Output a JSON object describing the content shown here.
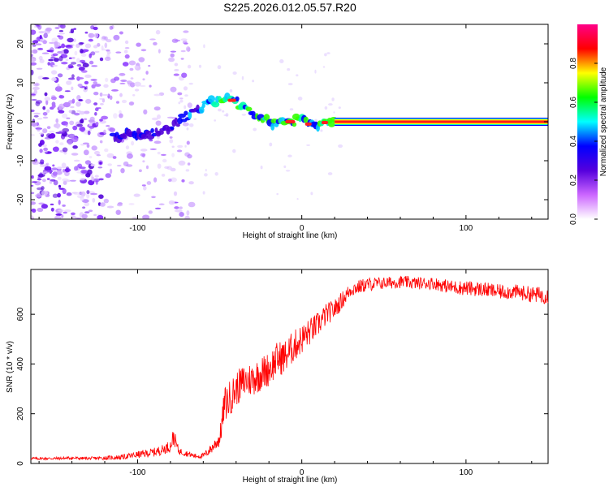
{
  "title": "S225.2026.012.05.57.R20",
  "chart_data": [
    {
      "type": "heatmap",
      "xlabel": "Height of straight line (km)",
      "ylabel": "Frequency (Hz)",
      "xlim": [
        -165,
        150
      ],
      "ylim": [
        -25,
        25
      ],
      "xticks": [
        -100,
        0,
        100
      ],
      "yticks": [
        -20,
        -10,
        0,
        10,
        20
      ],
      "grid": false,
      "colorbar": {
        "label": "Normalized spectral amplitude",
        "range": [
          0,
          1
        ],
        "ticks": [
          "0.0",
          "0.2",
          "0.4",
          "0.6",
          "0.8"
        ],
        "colormap": [
          "#ffffff",
          "#cc66ff",
          "#5500dd",
          "#0000ff",
          "#00ffff",
          "#00ff00",
          "#ffff00",
          "#ff0000",
          "#ff0088"
        ]
      },
      "ridge": {
        "x": [
          -115,
          -105,
          -95,
          -85,
          -75,
          -65,
          -55,
          -45,
          -40,
          -35,
          -25,
          -15,
          -10,
          -5,
          0,
          5,
          10,
          15,
          20,
          150
        ],
        "y": [
          -4,
          -3,
          -3,
          -3,
          0,
          3,
          5,
          6,
          5,
          4,
          1,
          -1,
          0,
          0,
          1,
          -1,
          -1,
          0,
          0,
          0
        ]
      },
      "noise_region_x": [
        -165,
        -75
      ]
    },
    {
      "type": "line",
      "xlabel": "Height of straight line (km)",
      "ylabel": "SNR (10 * v/v)",
      "xlim": [
        -165,
        150
      ],
      "ylim": [
        0,
        780
      ],
      "xticks": [
        -100,
        0,
        100
      ],
      "yticks": [
        0,
        200,
        400,
        600
      ],
      "grid": false,
      "series": [
        {
          "color": "#ff0000",
          "x": [
            -165,
            -150,
            -140,
            -130,
            -120,
            -110,
            -100,
            -90,
            -85,
            -80,
            -78,
            -75,
            -70,
            -65,
            -60,
            -55,
            -50,
            -47,
            -45,
            -42,
            -40,
            -35,
            -30,
            -25,
            -20,
            -15,
            -10,
            -5,
            0,
            5,
            10,
            15,
            20,
            25,
            30,
            40,
            50,
            60,
            70,
            80,
            90,
            100,
            110,
            120,
            130,
            140,
            150
          ],
          "values": [
            20,
            20,
            22,
            20,
            22,
            25,
            35,
            45,
            55,
            70,
            110,
            50,
            40,
            30,
            30,
            60,
            100,
            240,
            250,
            280,
            300,
            330,
            340,
            360,
            380,
            420,
            430,
            470,
            500,
            530,
            560,
            600,
            620,
            660,
            700,
            720,
            725,
            730,
            725,
            725,
            710,
            705,
            700,
            690,
            690,
            680,
            675
          ],
          "noise_amplitude": [
            6,
            6,
            6,
            6,
            8,
            10,
            14,
            18,
            20,
            25,
            35,
            15,
            12,
            10,
            12,
            20,
            35,
            70,
            75,
            70,
            70,
            70,
            70,
            70,
            70,
            70,
            70,
            65,
            60,
            55,
            50,
            45,
            40,
            35,
            30,
            28,
            25,
            25,
            25,
            25,
            28,
            30,
            30,
            30,
            30,
            32,
            35
          ]
        }
      ]
    }
  ]
}
